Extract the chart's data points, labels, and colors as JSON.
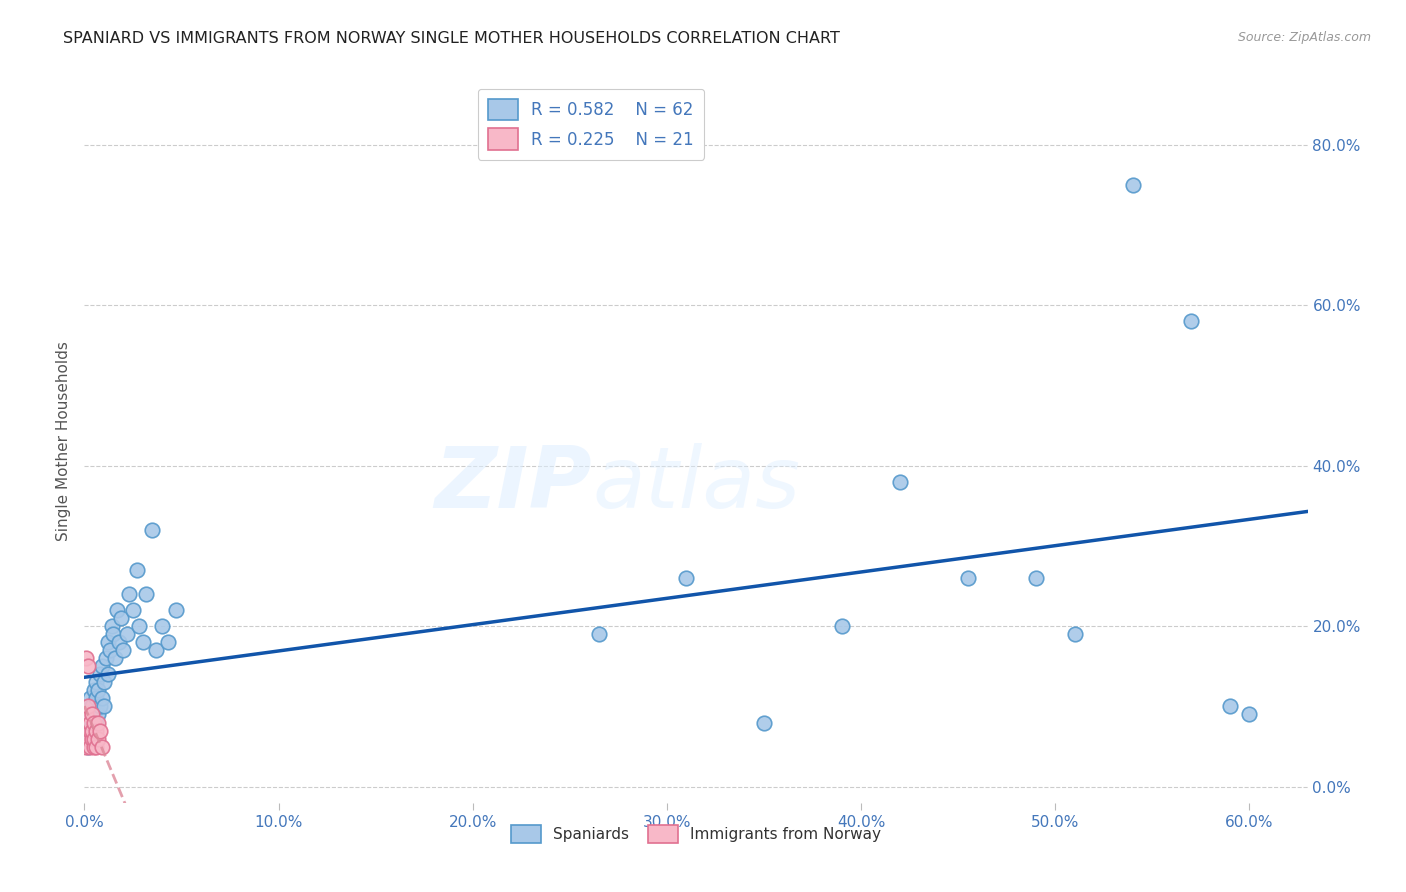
{
  "title": "SPANIARD VS IMMIGRANTS FROM NORWAY SINGLE MOTHER HOUSEHOLDS CORRELATION CHART",
  "source": "Source: ZipAtlas.com",
  "ylabel_label": "Single Mother Households",
  "xlim": [
    0.0,
    0.63
  ],
  "ylim": [
    -0.02,
    0.88
  ],
  "x_tick_vals": [
    0.0,
    0.1,
    0.2,
    0.3,
    0.4,
    0.5,
    0.6
  ],
  "x_tick_labels": [
    "0.0%",
    "10.0%",
    "20.0%",
    "30.0%",
    "40.0%",
    "50.0%",
    "60.0%"
  ],
  "y_tick_vals": [
    0.0,
    0.2,
    0.4,
    0.6,
    0.8
  ],
  "y_tick_labels": [
    "0.0%",
    "20.0%",
    "40.0%",
    "60.0%",
    "80.0%"
  ],
  "spaniards_x": [
    0.001,
    0.001,
    0.002,
    0.002,
    0.002,
    0.002,
    0.003,
    0.003,
    0.003,
    0.003,
    0.004,
    0.004,
    0.004,
    0.005,
    0.005,
    0.005,
    0.006,
    0.006,
    0.006,
    0.007,
    0.007,
    0.008,
    0.008,
    0.009,
    0.009,
    0.01,
    0.01,
    0.011,
    0.012,
    0.012,
    0.013,
    0.014,
    0.015,
    0.016,
    0.017,
    0.018,
    0.019,
    0.02,
    0.022,
    0.023,
    0.025,
    0.027,
    0.028,
    0.03,
    0.032,
    0.035,
    0.037,
    0.04,
    0.043,
    0.047,
    0.265,
    0.31,
    0.35,
    0.39,
    0.42,
    0.455,
    0.49,
    0.51,
    0.54,
    0.57,
    0.59,
    0.6
  ],
  "spaniards_y": [
    0.055,
    0.065,
    0.05,
    0.07,
    0.08,
    0.1,
    0.06,
    0.09,
    0.07,
    0.11,
    0.08,
    0.06,
    0.1,
    0.09,
    0.07,
    0.12,
    0.08,
    0.11,
    0.13,
    0.09,
    0.12,
    0.1,
    0.14,
    0.11,
    0.15,
    0.13,
    0.1,
    0.16,
    0.14,
    0.18,
    0.17,
    0.2,
    0.19,
    0.16,
    0.22,
    0.18,
    0.21,
    0.17,
    0.19,
    0.24,
    0.22,
    0.27,
    0.2,
    0.18,
    0.24,
    0.32,
    0.17,
    0.2,
    0.18,
    0.22,
    0.19,
    0.26,
    0.08,
    0.2,
    0.38,
    0.26,
    0.26,
    0.19,
    0.75,
    0.58,
    0.1,
    0.09
  ],
  "norway_x": [
    0.001,
    0.001,
    0.001,
    0.002,
    0.002,
    0.002,
    0.003,
    0.003,
    0.003,
    0.004,
    0.004,
    0.004,
    0.005,
    0.005,
    0.005,
    0.006,
    0.006,
    0.007,
    0.007,
    0.008,
    0.009
  ],
  "norway_y": [
    0.05,
    0.09,
    0.16,
    0.06,
    0.1,
    0.15,
    0.07,
    0.08,
    0.05,
    0.06,
    0.09,
    0.07,
    0.05,
    0.08,
    0.06,
    0.07,
    0.05,
    0.06,
    0.08,
    0.07,
    0.05
  ],
  "spaniard_color": "#a8c8e8",
  "spaniard_edge_color": "#5599cc",
  "norway_color": "#f8b8c8",
  "norway_edge_color": "#e07090",
  "spaniard_line_color": "#1155aa",
  "norway_line_color": "#dd8899",
  "legend_r_spain": "R = 0.582",
  "legend_n_spain": "N = 62",
  "legend_r_norway": "R = 0.225",
  "legend_n_norway": "N = 21",
  "watermark_zip": "ZIP",
  "watermark_atlas": "atlas",
  "background_color": "#ffffff",
  "grid_color": "#cccccc",
  "tick_color": "#4477bb",
  "title_color": "#222222",
  "source_color": "#999999"
}
